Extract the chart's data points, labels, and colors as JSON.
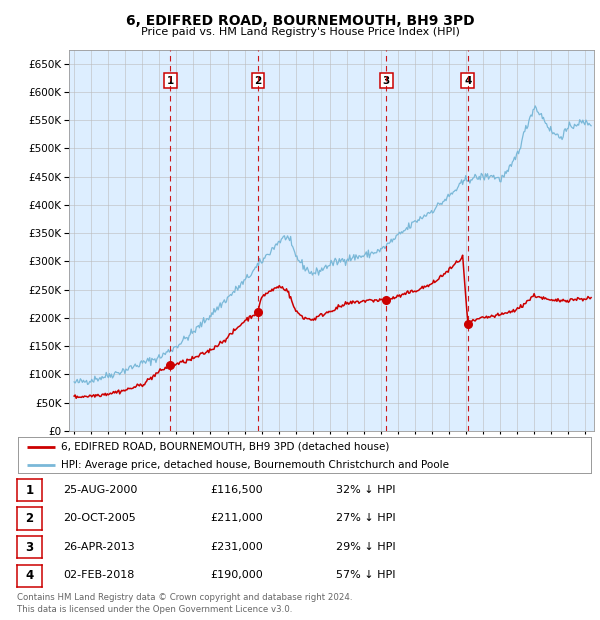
{
  "title": "6, EDIFRED ROAD, BOURNEMOUTH, BH9 3PD",
  "subtitle": "Price paid vs. HM Land Registry's House Price Index (HPI)",
  "background_color": "#ffffff",
  "plot_bg_color": "#ddeeff",
  "hpi_color": "#7ab8d8",
  "price_color": "#cc0000",
  "grid_color": "#bbbbbb",
  "ylim": [
    0,
    675000
  ],
  "yticks": [
    0,
    50000,
    100000,
    150000,
    200000,
    250000,
    300000,
    350000,
    400000,
    450000,
    500000,
    550000,
    600000,
    650000
  ],
  "xlim_start": 1994.7,
  "xlim_end": 2025.5,
  "sales": [
    {
      "num": 1,
      "date_label": "25-AUG-2000",
      "date_year": 2000.65,
      "price": 116500,
      "hpi_pct": "32% ↓ HPI"
    },
    {
      "num": 2,
      "date_label": "20-OCT-2005",
      "date_year": 2005.8,
      "price": 211000,
      "hpi_pct": "27% ↓ HPI"
    },
    {
      "num": 3,
      "date_label": "26-APR-2013",
      "date_year": 2013.32,
      "price": 231000,
      "hpi_pct": "29% ↓ HPI"
    },
    {
      "num": 4,
      "date_label": "02-FEB-2018",
      "date_year": 2018.09,
      "price": 190000,
      "hpi_pct": "57% ↓ HPI"
    }
  ],
  "legend_line1": "6, EDIFRED ROAD, BOURNEMOUTH, BH9 3PD (detached house)",
  "legend_line2": "HPI: Average price, detached house, Bournemouth Christchurch and Poole",
  "footer": "Contains HM Land Registry data © Crown copyright and database right 2024.\nThis data is licensed under the Open Government Licence v3.0."
}
